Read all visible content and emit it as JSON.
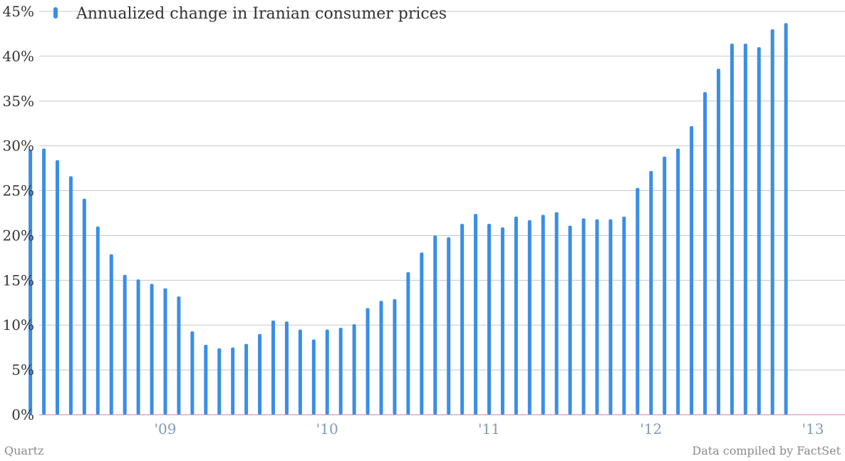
{
  "colors": {
    "bar": "#3a8ee6",
    "grid": "#c8c8c8",
    "baseline": "#e6a6c8"
  },
  "chart_data": {
    "type": "bar",
    "series": [
      {
        "name": "Annualized change in Iranian consumer prices",
        "x": [
          "2008-03",
          "2008-04",
          "2008-05",
          "2008-06",
          "2008-07",
          "2008-08",
          "2008-09",
          "2008-10",
          "2008-11",
          "2008-12",
          "2009-01",
          "2009-02",
          "2009-03",
          "2009-04",
          "2009-05",
          "2009-06",
          "2009-07",
          "2009-08",
          "2009-09",
          "2009-10",
          "2009-11",
          "2009-12",
          "2010-01",
          "2010-02",
          "2010-03",
          "2010-04",
          "2010-05",
          "2010-06",
          "2010-07",
          "2010-08",
          "2010-09",
          "2010-10",
          "2010-11",
          "2010-12",
          "2011-01",
          "2011-02",
          "2011-03",
          "2011-04",
          "2011-05",
          "2011-06",
          "2011-07",
          "2011-08",
          "2011-09",
          "2011-10",
          "2011-11",
          "2011-12",
          "2012-01",
          "2012-02",
          "2012-03",
          "2012-04",
          "2012-05",
          "2012-06",
          "2012-07",
          "2012-08",
          "2012-09",
          "2012-10",
          "2012-11"
        ],
        "values": [
          29.6,
          29.7,
          28.4,
          26.6,
          24.1,
          21.0,
          17.9,
          15.6,
          15.1,
          14.6,
          14.1,
          13.2,
          9.3,
          7.8,
          7.4,
          7.5,
          7.9,
          9.0,
          10.5,
          10.4,
          9.5,
          8.4,
          9.5,
          9.7,
          10.1,
          11.9,
          12.7,
          12.9,
          15.9,
          18.1,
          20.0,
          19.8,
          21.3,
          22.4,
          21.3,
          20.9,
          22.1,
          21.7,
          22.3,
          22.6,
          21.1,
          21.9,
          21.8,
          21.8,
          22.1,
          25.3,
          27.2,
          28.8,
          29.7,
          32.2,
          36.0,
          38.6,
          41.4,
          41.4,
          41.0,
          43.0,
          43.7
        ]
      }
    ],
    "ylim": [
      0,
      45
    ],
    "yticks": [
      0,
      5,
      10,
      15,
      20,
      25,
      30,
      35,
      40,
      45
    ],
    "ytick_labels": [
      "0%",
      "5%",
      "10%",
      "15%",
      "20%",
      "25%",
      "30%",
      "35%",
      "40%",
      "45%"
    ],
    "xticks": [
      "2009-01",
      "2010-01",
      "2011-01",
      "2012-01",
      "2013-01"
    ],
    "xtick_labels": [
      "'09",
      "'10",
      "'11",
      "'12",
      "'13"
    ],
    "grid": true,
    "legend_position": "top-left"
  },
  "footer": {
    "source_left": "Quartz",
    "source_right": "Data compiled by FactSet"
  }
}
